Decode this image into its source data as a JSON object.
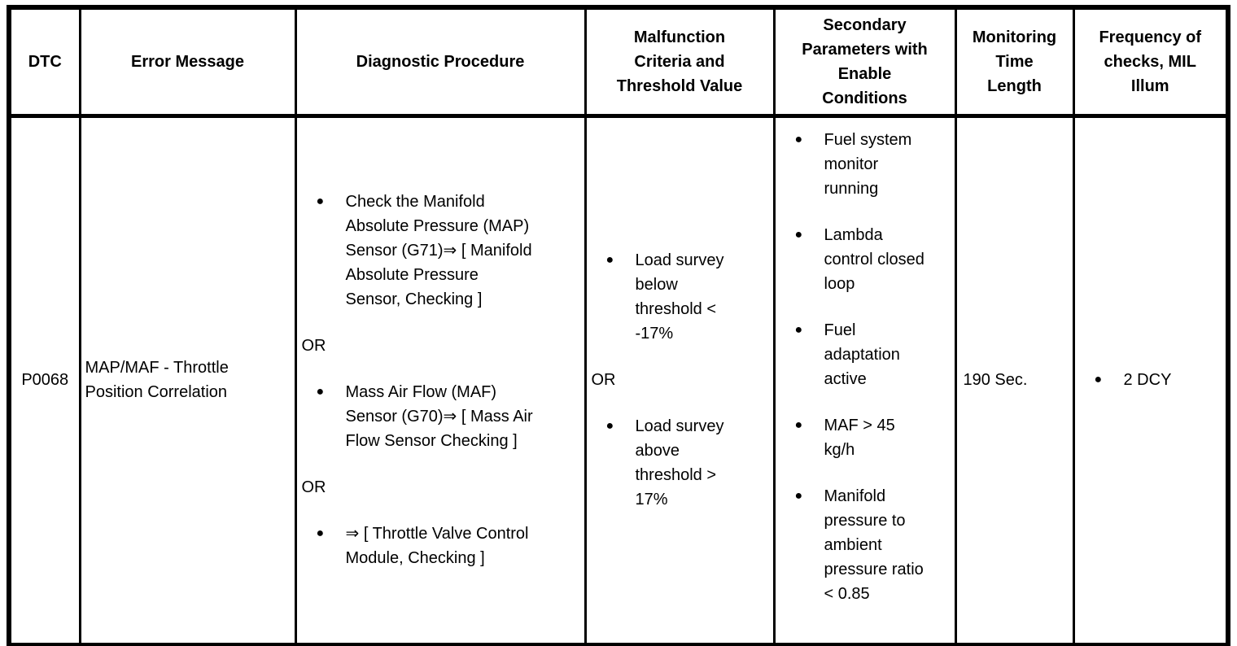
{
  "glyphs": {
    "bullet": "●"
  },
  "table": {
    "headers": [
      "DTC",
      "Error Message",
      "Diagnostic Procedure",
      "Malfunction\nCriteria and\nThreshold Value",
      "Secondary\nParameters with\nEnable\nConditions",
      "Monitoring\nTime\nLength",
      "Frequency of\nchecks, MIL\nIllum"
    ],
    "row": {
      "dtc": "P0068",
      "error_message": "MAP/MAF - Throttle\nPosition Correlation",
      "diagnostic_procedure": [
        {
          "type": "bullet",
          "text": "Check the Manifold\nAbsolute Pressure (MAP)\nSensor (G71)⇒ [ Manifold\nAbsolute Pressure\nSensor, Checking ]"
        },
        {
          "type": "or",
          "text": "OR"
        },
        {
          "type": "bullet",
          "text": "Mass Air Flow (MAF)\nSensor (G70)⇒ [ Mass Air\nFlow Sensor Checking ]"
        },
        {
          "type": "or",
          "text": "OR"
        },
        {
          "type": "bullet",
          "text": "⇒ [ Throttle Valve Control\nModule, Checking ]"
        }
      ],
      "malfunction_criteria": [
        {
          "type": "bullet",
          "text": "Load survey\nbelow\nthreshold <\n-17%"
        },
        {
          "type": "or",
          "text": "OR"
        },
        {
          "type": "bullet",
          "text": "Load survey\nabove\nthreshold >\n17%"
        }
      ],
      "secondary_parameters": [
        {
          "type": "bullet",
          "text": "Fuel system\nmonitor\nrunning"
        },
        {
          "type": "bullet",
          "text": "Lambda\ncontrol closed\nloop"
        },
        {
          "type": "bullet",
          "text": "Fuel\nadaptation\nactive"
        },
        {
          "type": "bullet",
          "text": "MAF > 45\nkg/h"
        },
        {
          "type": "bullet",
          "text": "Manifold\npressure to\nambient\npressure ratio\n< 0.85"
        }
      ],
      "monitoring_time": "190 Sec.",
      "frequency": [
        {
          "type": "bullet",
          "text": "2 DCY"
        }
      ]
    }
  }
}
